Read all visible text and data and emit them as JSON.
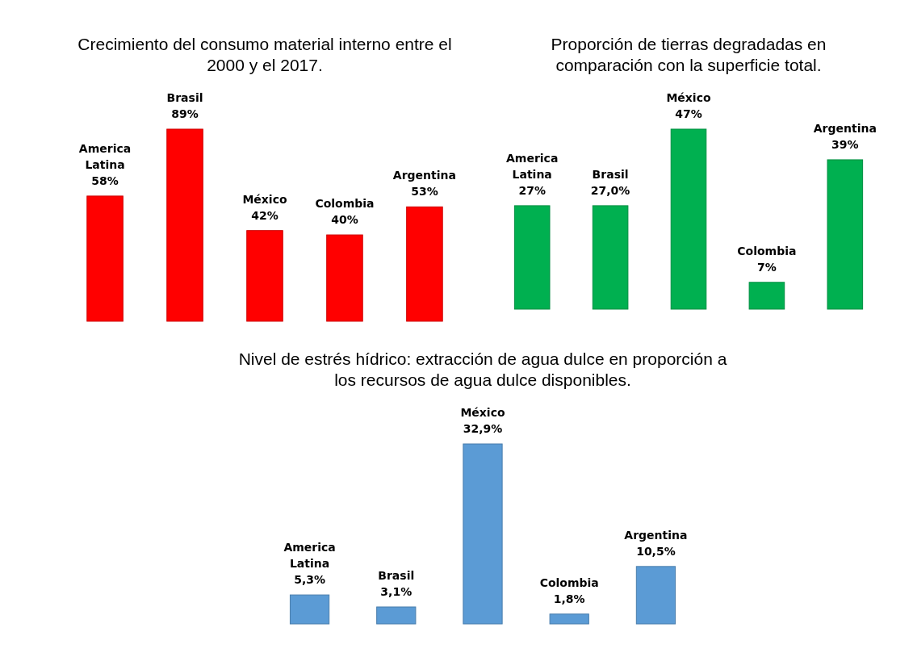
{
  "chart_data": [
    {
      "type": "bar",
      "title": "Crecimiento del consumo material interno entre el 2000 y el 2017.",
      "categories": [
        "America Latina",
        "Brasil",
        "México",
        "Colombia",
        "Argentina"
      ],
      "values": [
        58,
        89,
        42,
        40,
        53
      ],
      "value_labels": [
        "58%",
        "89%",
        "42%",
        "40%",
        "53%"
      ],
      "color": "#ff0000"
    },
    {
      "type": "bar",
      "title": "Proporción de tierras degradadas en comparación con la superficie total.",
      "categories": [
        "America Latina",
        "Brasil",
        "México",
        "Colombia",
        "Argentina"
      ],
      "values": [
        27,
        27.0,
        47,
        7,
        39
      ],
      "value_labels": [
        "27%",
        "27,0%",
        "47%",
        "7%",
        "39%"
      ],
      "color": "#00b050"
    },
    {
      "type": "bar",
      "title": "Nivel de estrés hídrico: extracción de agua dulce en proporción a los recursos de agua dulce disponibles.",
      "categories": [
        "America Latina",
        "Brasil",
        "México",
        "Colombia",
        "Argentina"
      ],
      "values": [
        5.3,
        3.1,
        32.9,
        1.8,
        10.5
      ],
      "value_labels": [
        "5,3%",
        "3,1%",
        "32,9%",
        "1,8%",
        "10,5%"
      ],
      "color": "#5b9bd5"
    }
  ]
}
